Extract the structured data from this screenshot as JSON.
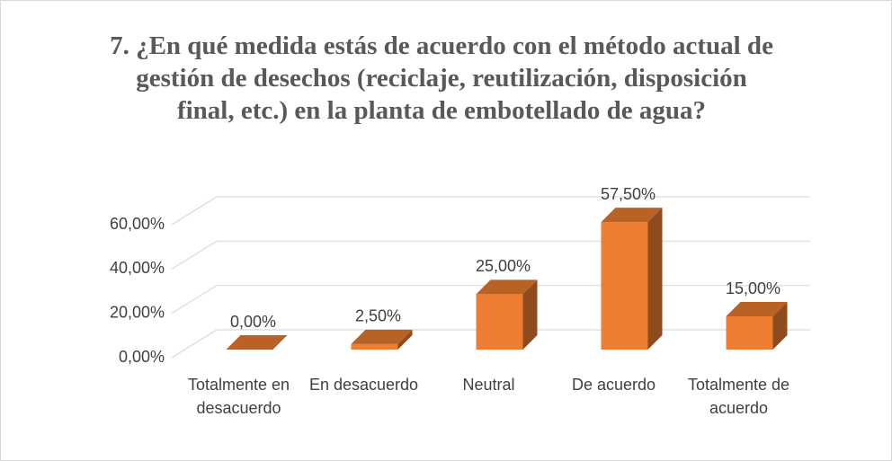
{
  "chart_data": {
    "type": "bar3d",
    "title": "7. ¿En qué medida estás de acuerdo con el método actual de gestión de desechos (reciclaje, reutilización, disposición final, etc.) en la planta de embotellado de agua?",
    "categories": [
      "Totalmente en desacuerdo",
      "En desacuerdo",
      "Neutral",
      "De acuerdo",
      "Totalmente de acuerdo"
    ],
    "values": [
      0,
      2.5,
      25,
      57.5,
      15
    ],
    "value_labels": [
      "0,00%",
      "2,50%",
      "25,00%",
      "57,50%",
      "15,00%"
    ],
    "color": "#ed7d31",
    "ylim": [
      0,
      60
    ],
    "yticks": [
      {
        "value": 0,
        "label": "0,00%"
      },
      {
        "value": 20,
        "label": "20,00%"
      },
      {
        "value": 40,
        "label": "40,00%"
      },
      {
        "value": 60,
        "label": "60,00%"
      }
    ],
    "grid": true
  }
}
